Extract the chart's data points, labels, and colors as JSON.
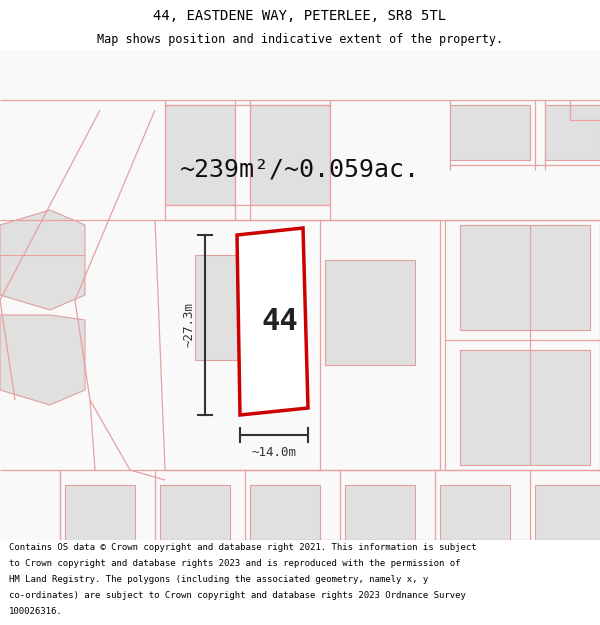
{
  "title": "44, EASTDENE WAY, PETERLEE, SR8 5TL",
  "subtitle": "Map shows position and indicative extent of the property.",
  "area_text": "~239m²/~0.059ac.",
  "number_label": "44",
  "dim_height": "~27.3m",
  "dim_width": "~14.0m",
  "footer": "Contains OS data © Crown copyright and database right 2021. This information is subject to Crown copyright and database rights 2023 and is reproduced with the permission of HM Land Registry. The polygons (including the associated geometry, namely x, y co-ordinates) are subject to Crown copyright and database rights 2023 Ordnance Survey 100026316.",
  "bg_color": "#ffffff",
  "map_bg": "#f8f8f8",
  "plot_color": "#cc0000",
  "plot_fill": "#ffffff",
  "bld_fill": "#e0e0e0",
  "bld_edge": "#e0a0a0",
  "road_line": "#e8a0a0",
  "dim_color": "#333333",
  "title_fontsize": 10,
  "subtitle_fontsize": 8.5,
  "area_fontsize": 18,
  "label_fontsize": 22,
  "dim_fontsize": 9,
  "footer_fontsize": 6.5
}
